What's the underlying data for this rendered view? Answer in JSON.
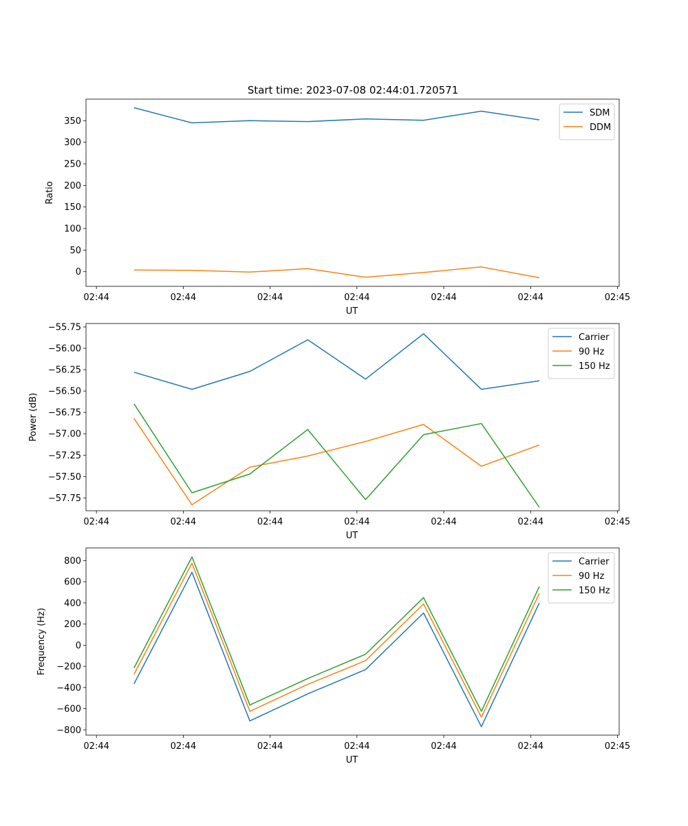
{
  "figure": {
    "title": "Start time: 2023-07-08 02:44:01.720571"
  },
  "colors": {
    "blue": "#1f77b4",
    "orange": "#ff7f0e",
    "green": "#2ca02c"
  },
  "chart_data": [
    {
      "type": "line",
      "id": "ratio",
      "title": "Start time: 2023-07-08 02:44:01.720571",
      "xlabel": "UT",
      "ylabel": "Ratio",
      "x": [
        1,
        2,
        3,
        4,
        5,
        6,
        7,
        8
      ],
      "xlim": [
        0.17,
        9.38
      ],
      "xticks": [
        0.35,
        1.85,
        3.35,
        4.85,
        6.35,
        7.85,
        9.35
      ],
      "xtick_labels": [
        "02:44",
        "02:44",
        "02:44",
        "02:44",
        "02:44",
        "02:44",
        "02:45"
      ],
      "ylim": [
        -34,
        400
      ],
      "yticks": [
        0,
        50,
        100,
        150,
        200,
        250,
        300,
        350
      ],
      "ytick_labels": [
        "0",
        "50",
        "100",
        "150",
        "200",
        "250",
        "300",
        "350"
      ],
      "legend": "top-right",
      "grid": false,
      "series": [
        {
          "name": "SDM",
          "color": "#1f77b4",
          "values": [
            380,
            345,
            350,
            348,
            354,
            351,
            372,
            352
          ]
        },
        {
          "name": "DDM",
          "color": "#ff7f0e",
          "values": [
            4,
            3,
            -1,
            7,
            -13,
            -2,
            11,
            -14
          ]
        }
      ]
    },
    {
      "type": "line",
      "id": "power",
      "xlabel": "UT",
      "ylabel": "Power (dB)",
      "x": [
        1,
        2,
        3,
        4,
        5,
        6,
        7,
        8
      ],
      "xlim": [
        0.17,
        9.38
      ],
      "xticks": [
        0.35,
        1.85,
        3.35,
        4.85,
        6.35,
        7.85,
        9.35
      ],
      "xtick_labels": [
        "02:44",
        "02:44",
        "02:44",
        "02:44",
        "02:44",
        "02:44",
        "02:45"
      ],
      "ylim": [
        -57.9,
        -55.71
      ],
      "yticks": [
        -57.75,
        -57.5,
        -57.25,
        -57.0,
        -56.75,
        -56.5,
        -56.25,
        -56.0,
        -55.75
      ],
      "ytick_labels": [
        "−57.75",
        "−57.50",
        "−57.25",
        "−57.00",
        "−56.75",
        "−56.50",
        "−56.25",
        "−56.00",
        "−55.75"
      ],
      "legend": "top-right",
      "grid": false,
      "series": [
        {
          "name": "Carrier",
          "color": "#1f77b4",
          "values": [
            -56.28,
            -56.48,
            -56.27,
            -55.9,
            -56.36,
            -55.83,
            -56.48,
            -56.38
          ]
        },
        {
          "name": "90 Hz",
          "color": "#ff7f0e",
          "values": [
            -56.82,
            -57.83,
            -57.39,
            -57.26,
            -57.09,
            -56.89,
            -57.38,
            -57.13
          ]
        },
        {
          "name": "150 Hz",
          "color": "#2ca02c",
          "values": [
            -56.65,
            -57.69,
            -57.47,
            -56.95,
            -57.77,
            -57.01,
            -56.88,
            -57.86
          ]
        }
      ]
    },
    {
      "type": "line",
      "id": "frequency",
      "xlabel": "UT",
      "ylabel": "Frequency (Hz)",
      "x": [
        1,
        2,
        3,
        4,
        5,
        6,
        7,
        8
      ],
      "xlim": [
        0.17,
        9.38
      ],
      "xticks": [
        0.35,
        1.85,
        3.35,
        4.85,
        6.35,
        7.85,
        9.35
      ],
      "xtick_labels": [
        "02:44",
        "02:44",
        "02:44",
        "02:44",
        "02:44",
        "02:44",
        "02:45"
      ],
      "ylim": [
        -850,
        920
      ],
      "yticks": [
        -800,
        -600,
        -400,
        -200,
        0,
        200,
        400,
        600,
        800
      ],
      "ytick_labels": [
        "−800",
        "−600",
        "−400",
        "−200",
        "0",
        "200",
        "400",
        "600",
        "800"
      ],
      "legend": "top-right",
      "grid": false,
      "series": [
        {
          "name": "Carrier",
          "color": "#1f77b4",
          "values": [
            -365,
            690,
            -715,
            -460,
            -230,
            305,
            -770,
            400
          ]
        },
        {
          "name": "90 Hz",
          "color": "#ff7f0e",
          "values": [
            -275,
            775,
            -625,
            -370,
            -145,
            390,
            -680,
            490
          ]
        },
        {
          "name": "150 Hz",
          "color": "#2ca02c",
          "values": [
            -215,
            835,
            -565,
            -315,
            -85,
            450,
            -625,
            555
          ]
        }
      ]
    }
  ]
}
